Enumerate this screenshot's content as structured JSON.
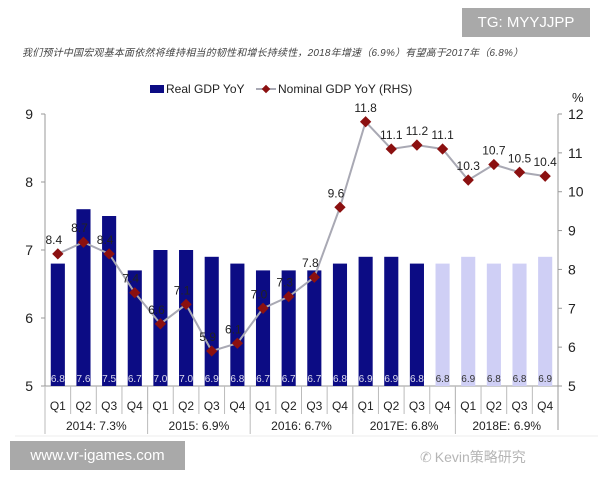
{
  "watermarks": {
    "top": "TG: MYYJJPP",
    "bottom": "www.vr-igames.com",
    "wechat": "Kevin策略研究"
  },
  "caption": "我们预计中国宏观基本面依然将维持相当的韧性和增长持续性，2018年增速（6.9%）有望高于2017年（6.8%）",
  "chart_data": {
    "type": "bar+line",
    "categories": [
      "Q1",
      "Q2",
      "Q3",
      "Q4",
      "Q1",
      "Q2",
      "Q3",
      "Q4",
      "Q1",
      "Q2",
      "Q3",
      "Q4",
      "Q1",
      "Q2",
      "Q3",
      "Q4",
      "Q1",
      "Q2",
      "Q3",
      "Q4"
    ],
    "groups": [
      {
        "label": "2014: 7.3%",
        "count": 4
      },
      {
        "label": "2015: 6.9%",
        "count": 4
      },
      {
        "label": "2016: 6.7%",
        "count": 4
      },
      {
        "label": "2017E: 6.8%",
        "count": 4
      },
      {
        "label": "2018E: 6.9%",
        "count": 4
      }
    ],
    "series": [
      {
        "name": "Real GDP YoY",
        "type": "bar",
        "axis": "left",
        "color": "#0c0c84",
        "forecast_color": "#cfcff5",
        "forecast_from_index": 15,
        "values": [
          6.8,
          7.6,
          7.5,
          6.7,
          7.0,
          7.0,
          6.9,
          6.8,
          6.7,
          6.7,
          6.7,
          6.8,
          6.9,
          6.9,
          6.8,
          6.8,
          6.9,
          6.8,
          6.8,
          6.9
        ]
      },
      {
        "name": "Nominal GDP YoY (RHS)",
        "type": "line",
        "axis": "right",
        "color": "#a9a9b4",
        "marker_color": "#8b1010",
        "values": [
          8.4,
          8.7,
          8.4,
          7.4,
          6.6,
          7.1,
          5.9,
          6.1,
          7.0,
          7.3,
          7.8,
          9.6,
          11.8,
          11.1,
          11.2,
          11.1,
          10.3,
          10.7,
          10.5,
          10.4
        ]
      }
    ],
    "y_left": {
      "range": [
        5,
        9
      ],
      "ticks": [
        5,
        6,
        7,
        8,
        9
      ]
    },
    "y_right": {
      "range": [
        5,
        12
      ],
      "ticks": [
        5,
        6,
        7,
        8,
        9,
        10,
        11,
        12
      ],
      "unit": "%"
    },
    "legend": "top",
    "grid": false
  }
}
